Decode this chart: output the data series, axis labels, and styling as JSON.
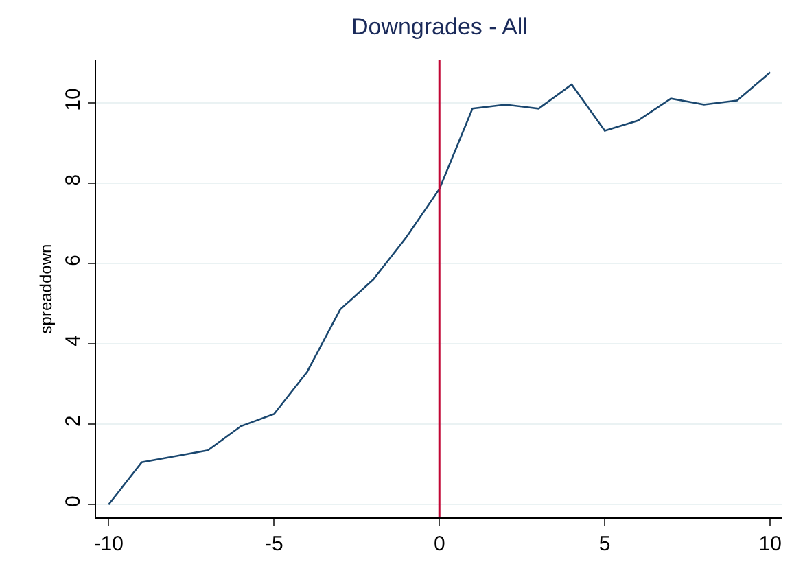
{
  "chart_data": {
    "type": "line",
    "title": "Downgrades - All",
    "ylabel": "spreaddown",
    "x": [
      -10,
      -9,
      -8,
      -7,
      -6,
      -5,
      -4,
      -3,
      -2,
      -1,
      0,
      1,
      2,
      3,
      4,
      5,
      6,
      7,
      8,
      9,
      10
    ],
    "series": [
      {
        "color": "#1a476f",
        "values": [
          0,
          1.05,
          1.2,
          1.35,
          1.95,
          2.25,
          3.3,
          4.85,
          5.6,
          6.65,
          7.85,
          9.85,
          9.95,
          9.85,
          10.45,
          9.3,
          9.55,
          10.1,
          9.95,
          10.05,
          10.75
        ]
      }
    ],
    "xlim": [
      -10.38,
      10.37
    ],
    "xticks": [
      -10,
      -5,
      0,
      5,
      10
    ],
    "ylim": [
      -0.32,
      11.05
    ],
    "yticks": [
      0,
      2,
      4,
      6,
      8,
      10
    ],
    "grid": "y",
    "marker": "none",
    "line_style": "solid",
    "ref_lines": [
      {
        "axis": "x",
        "value": 0,
        "color": "#c10534"
      }
    ]
  }
}
